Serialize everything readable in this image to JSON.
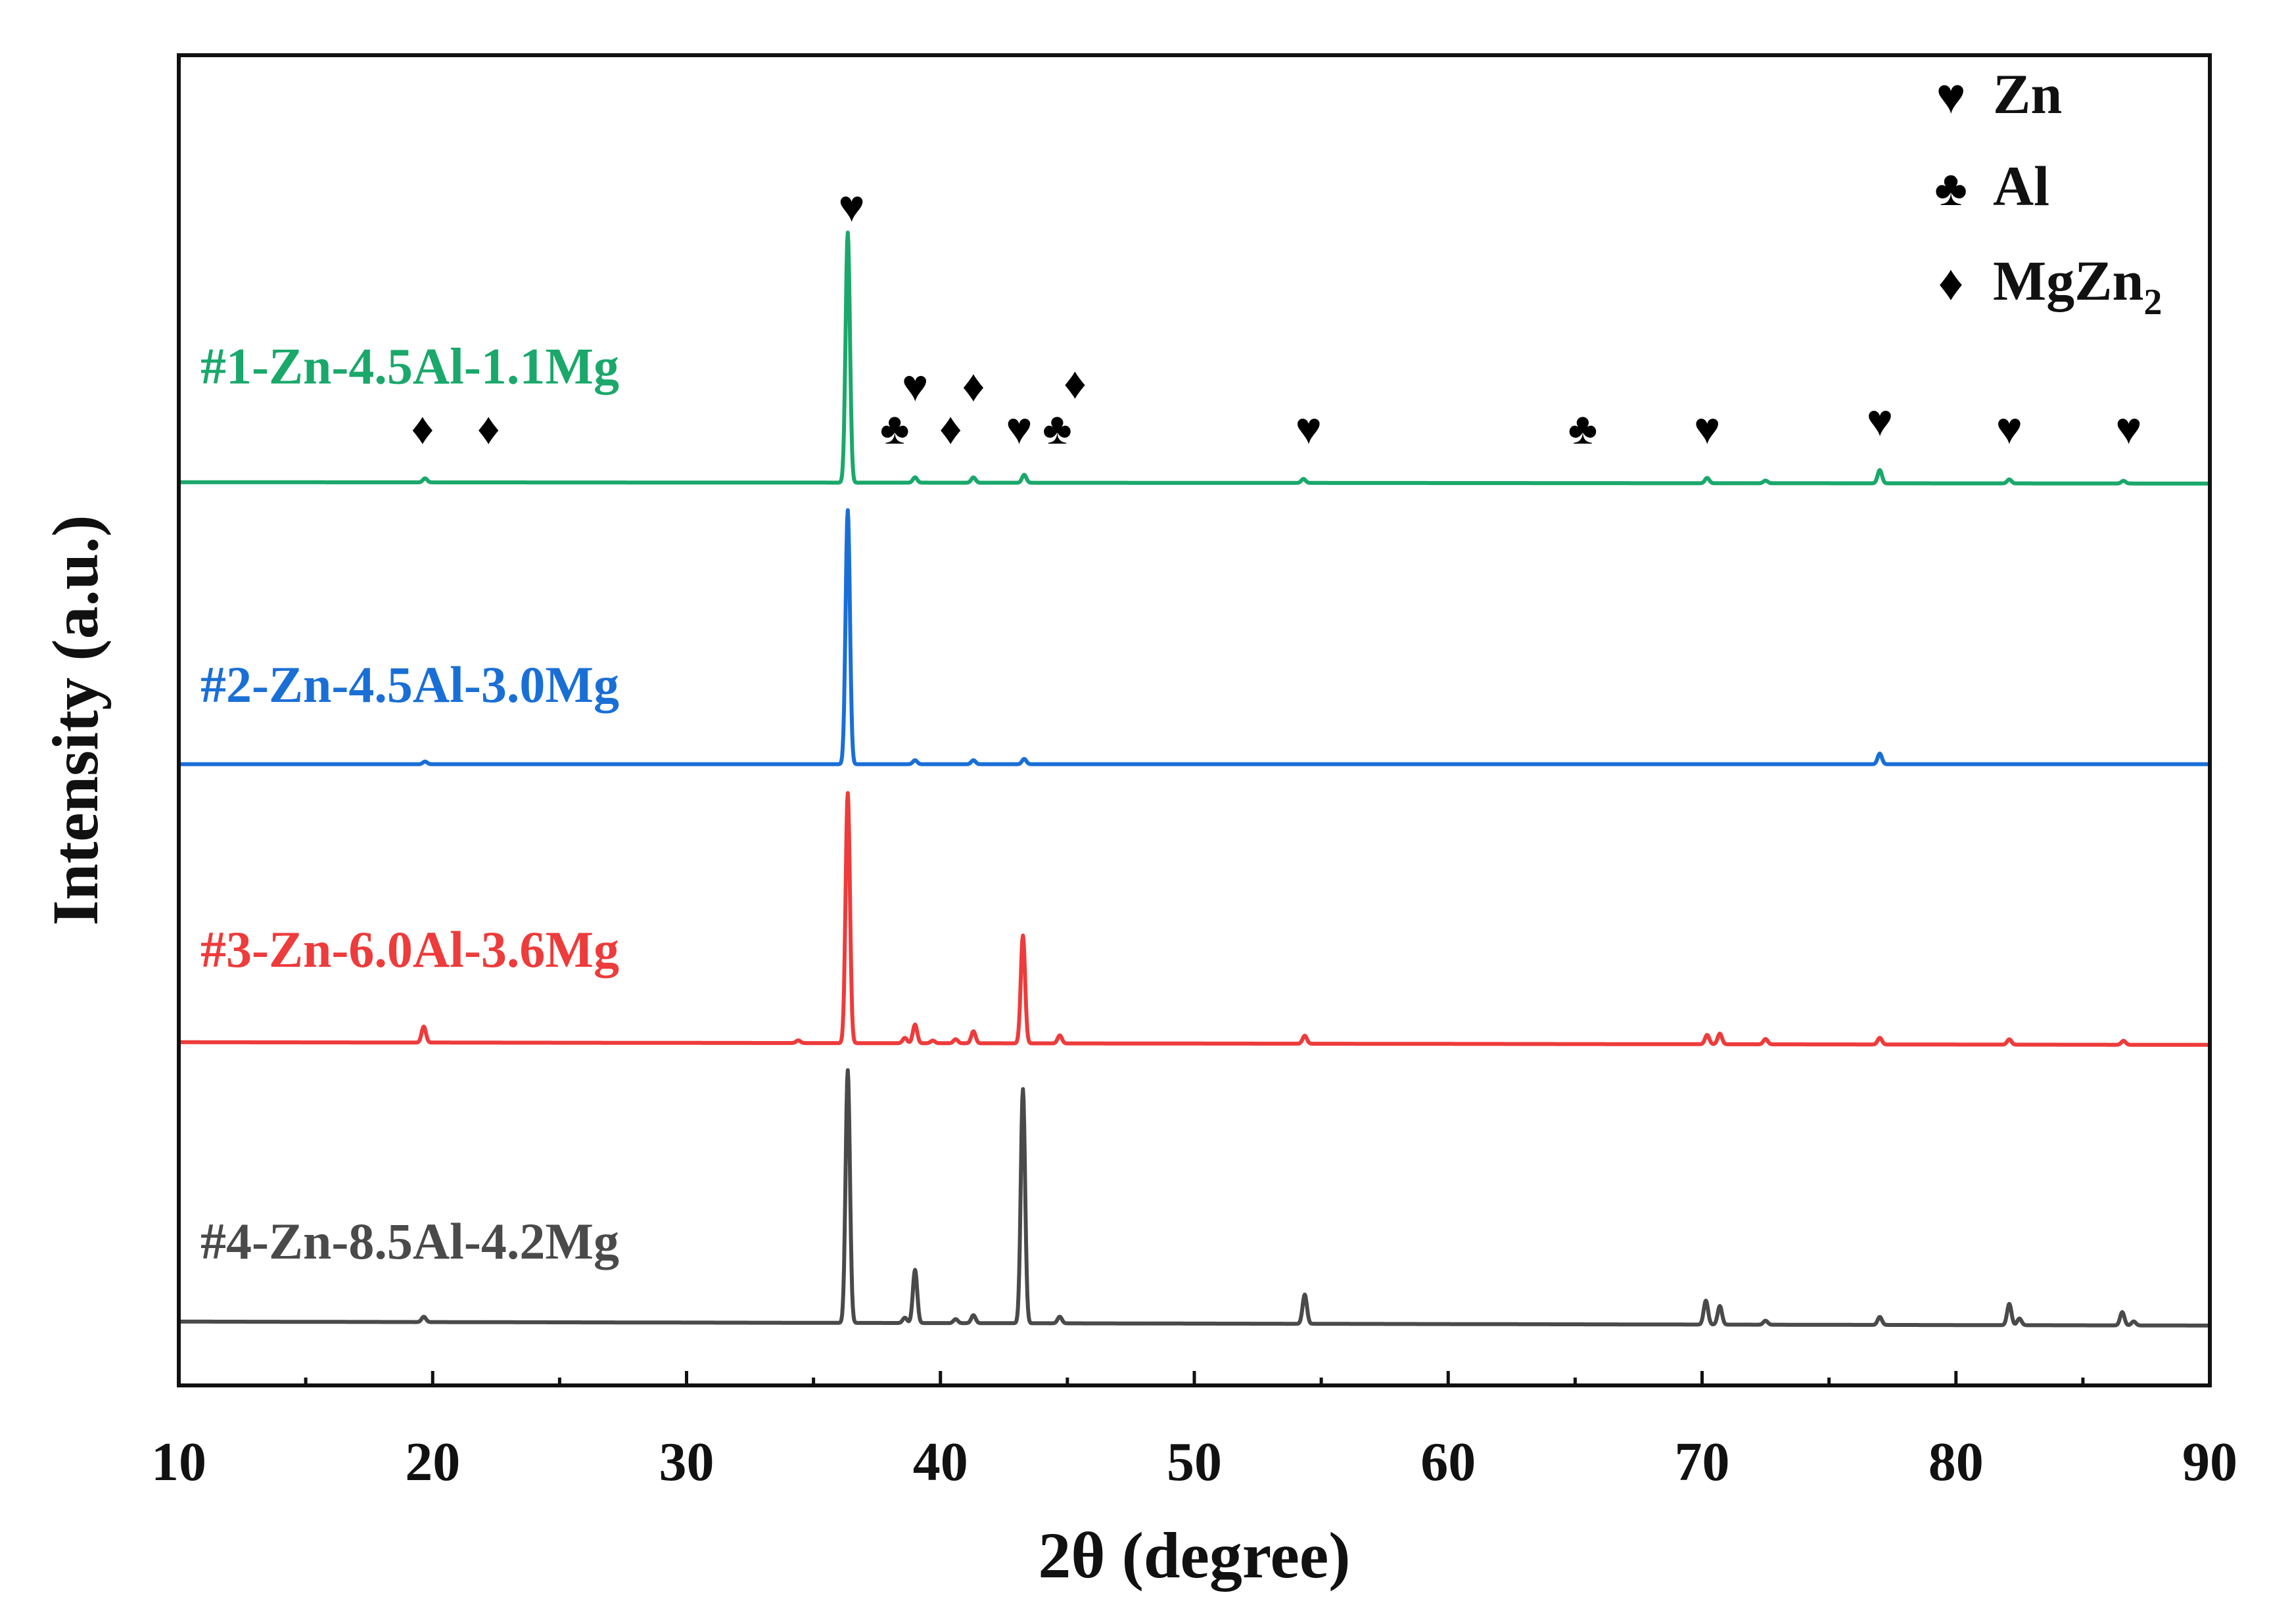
{
  "chart_data": {
    "type": "line",
    "title": "",
    "xlabel": "2θ (degree)",
    "ylabel": "Intensity (a.u.)",
    "xlim": [
      10,
      90
    ],
    "ylim": [
      0,
      100
    ],
    "x_ticks": [
      10,
      20,
      30,
      40,
      50,
      60,
      70,
      80,
      90
    ],
    "x_tick_labels": [
      "10",
      "20",
      "30",
      "40",
      "50",
      "60",
      "70",
      "80",
      "90"
    ],
    "grid": false,
    "legend_position": "top-right",
    "legend": [
      {
        "symbol": "♥",
        "label": "Zn",
        "subscript": ""
      },
      {
        "symbol": "♣",
        "label": "Al",
        "subscript": ""
      },
      {
        "symbol": "♦",
        "label": "MgZn",
        "subscript": "2"
      }
    ],
    "series": [
      {
        "name": "#1-Zn-4.5Al-1.1Mg",
        "color": "#1aa86b",
        "baseline": 67.9,
        "baseline_at_90": 67.8,
        "peaks": [
          {
            "x": 19.7,
            "h": 0.3
          },
          {
            "x": 36.35,
            "h": 18.8
          },
          {
            "x": 39.0,
            "h": 0.4
          },
          {
            "x": 41.3,
            "h": 0.4
          },
          {
            "x": 43.3,
            "h": 0.6
          },
          {
            "x": 54.3,
            "h": 0.3
          },
          {
            "x": 70.2,
            "h": 0.4
          },
          {
            "x": 72.5,
            "h": 0.2
          },
          {
            "x": 77.0,
            "h": 1.0
          },
          {
            "x": 82.1,
            "h": 0.3
          },
          {
            "x": 86.6,
            "h": 0.2
          }
        ]
      },
      {
        "name": "#2-Zn-4.5Al-3.0Mg",
        "color": "#1a6fd6",
        "baseline": 46.7,
        "baseline_at_90": 46.7,
        "peaks": [
          {
            "x": 19.7,
            "h": 0.2
          },
          {
            "x": 36.35,
            "h": 19.1
          },
          {
            "x": 39.0,
            "h": 0.3
          },
          {
            "x": 41.3,
            "h": 0.3
          },
          {
            "x": 43.3,
            "h": 0.4
          },
          {
            "x": 77.0,
            "h": 0.8
          }
        ]
      },
      {
        "name": "#3-Zn-6.0Al-3.6Mg",
        "color": "#ee3b3b",
        "baseline": 25.8,
        "baseline_at_90": 25.6,
        "peaks": [
          {
            "x": 19.65,
            "h": 1.2
          },
          {
            "x": 34.4,
            "h": 0.2
          },
          {
            "x": 36.35,
            "h": 18.8
          },
          {
            "x": 38.6,
            "h": 0.4
          },
          {
            "x": 39.0,
            "h": 1.4
          },
          {
            "x": 39.7,
            "h": 0.2
          },
          {
            "x": 40.6,
            "h": 0.3
          },
          {
            "x": 41.3,
            "h": 0.9
          },
          {
            "x": 43.25,
            "h": 8.1
          },
          {
            "x": 44.7,
            "h": 0.6
          },
          {
            "x": 54.35,
            "h": 0.6
          },
          {
            "x": 70.2,
            "h": 0.7
          },
          {
            "x": 70.7,
            "h": 0.8
          },
          {
            "x": 72.5,
            "h": 0.4
          },
          {
            "x": 77.0,
            "h": 0.5
          },
          {
            "x": 82.1,
            "h": 0.4
          },
          {
            "x": 86.6,
            "h": 0.3
          }
        ]
      },
      {
        "name": "#4-Zn-8.5Al-4.2Mg",
        "color": "#4a4a4a",
        "baseline": 4.8,
        "baseline_at_90": 4.5,
        "peaks": [
          {
            "x": 19.65,
            "h": 0.4
          },
          {
            "x": 36.35,
            "h": 19.0
          },
          {
            "x": 38.6,
            "h": 0.4
          },
          {
            "x": 39.0,
            "h": 4.0
          },
          {
            "x": 40.6,
            "h": 0.3
          },
          {
            "x": 41.3,
            "h": 0.6
          },
          {
            "x": 43.25,
            "h": 17.6
          },
          {
            "x": 44.7,
            "h": 0.5
          },
          {
            "x": 54.35,
            "h": 2.2
          },
          {
            "x": 70.15,
            "h": 1.8
          },
          {
            "x": 70.7,
            "h": 1.4
          },
          {
            "x": 72.5,
            "h": 0.3
          },
          {
            "x": 77.0,
            "h": 0.6
          },
          {
            "x": 82.1,
            "h": 1.6
          },
          {
            "x": 82.5,
            "h": 0.5
          },
          {
            "x": 86.55,
            "h": 1.0
          },
          {
            "x": 87.0,
            "h": 0.3
          }
        ]
      }
    ],
    "annotations": [
      {
        "symbol": "♥",
        "x": 36.5,
        "y": 87.5
      },
      {
        "symbol": "♦",
        "x": 19.6,
        "y": 70.8
      },
      {
        "symbol": "♦",
        "x": 22.2,
        "y": 70.8
      },
      {
        "symbol": "♥",
        "x": 39.0,
        "y": 74.0
      },
      {
        "symbol": "♦",
        "x": 41.3,
        "y": 74.0
      },
      {
        "symbol": "♦",
        "x": 45.3,
        "y": 74.2
      },
      {
        "symbol": "♣",
        "x": 38.2,
        "y": 70.8
      },
      {
        "symbol": "♦",
        "x": 40.4,
        "y": 70.8
      },
      {
        "symbol": "♥",
        "x": 43.1,
        "y": 70.8
      },
      {
        "symbol": "♣",
        "x": 44.6,
        "y": 70.8
      },
      {
        "symbol": "♥",
        "x": 54.5,
        "y": 70.8
      },
      {
        "symbol": "♣",
        "x": 65.3,
        "y": 70.8
      },
      {
        "symbol": "♥",
        "x": 70.2,
        "y": 70.8
      },
      {
        "symbol": "♥",
        "x": 77.0,
        "y": 71.4
      },
      {
        "symbol": "♥",
        "x": 82.1,
        "y": 70.8
      },
      {
        "symbol": "♥",
        "x": 86.8,
        "y": 70.8
      }
    ]
  }
}
